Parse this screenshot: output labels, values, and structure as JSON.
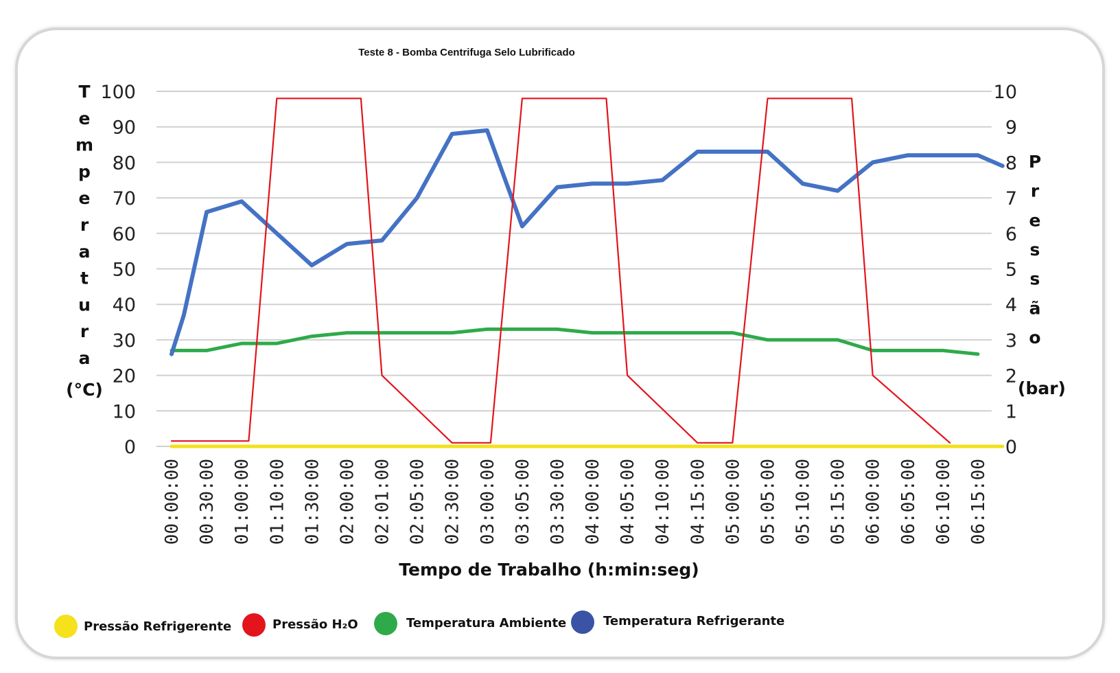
{
  "chart_data": {
    "type": "line",
    "title": "Teste 8 - Bomba Centrifuga Selo Lubrificado",
    "xlabel": "Tempo de Trabalho (h:min:seg)",
    "ylabel_left": "Temperatura",
    "ylabel_left_unit": "(°C)",
    "ylabel_right": "Pressão",
    "ylabel_right_unit": "(bar)",
    "ylim_left": [
      0,
      100
    ],
    "ylim_right": [
      0,
      10
    ],
    "yticks_left": [
      "0",
      "10",
      "20",
      "30",
      "40",
      "50",
      "60",
      "70",
      "80",
      "90",
      "100"
    ],
    "yticks_right": [
      "0",
      "1",
      "2",
      "3",
      "4",
      "5",
      "6",
      "7",
      "8",
      "9",
      "10"
    ],
    "grid": true,
    "categories": [
      "00:00:00",
      "00:30:00",
      "01:00:00",
      "01:10:00",
      "01:30:00",
      "02:00:00",
      "02:01:00",
      "02:05:00",
      "02:30:00",
      "03:00:00",
      "03:05:00",
      "03:30:00",
      "04:00:00",
      "04:05:00",
      "04:10:00",
      "04:15:00",
      "05:00:00",
      "05:05:00",
      "05:10:00",
      "05:15:00",
      "06:00:00",
      "06:05:00",
      "06:10:00",
      "06:15:00"
    ],
    "series": [
      {
        "name": "Temperatura Refrigerante",
        "axis": "left",
        "color": "#4472c4",
        "x": [
          0,
          0.35,
          1,
          2,
          3,
          4,
          5,
          6,
          7,
          8,
          9,
          10,
          11,
          12,
          13,
          14,
          15,
          16,
          17,
          18,
          19,
          20,
          21,
          22,
          23,
          23.7
        ],
        "values": [
          26,
          37,
          66,
          69,
          60,
          51,
          57,
          58,
          70,
          88,
          89,
          62,
          73,
          74,
          74,
          75,
          83,
          83,
          83,
          74,
          72,
          80,
          82,
          82,
          82,
          79
        ]
      },
      {
        "name": "Temperatura Ambiente",
        "axis": "left",
        "color": "#2eaa4a",
        "x": [
          0,
          1,
          2,
          3,
          4,
          5,
          6,
          7,
          8,
          9,
          10,
          11,
          12,
          13,
          14,
          15,
          16,
          17,
          18,
          19,
          20,
          21,
          22,
          23
        ],
        "values": [
          27,
          27,
          29,
          29,
          31,
          32,
          32,
          32,
          32,
          33,
          33,
          33,
          32,
          32,
          32,
          32,
          32,
          30,
          30,
          30,
          27,
          27,
          27,
          26
        ]
      },
      {
        "name": "Pressão H₂O",
        "axis": "right",
        "color": "#e3141b",
        "x": [
          0,
          2.2,
          3,
          5.4,
          6,
          8,
          9.1,
          10,
          12.4,
          13,
          15,
          16,
          17,
          19.4,
          20,
          22.2
        ],
        "values": [
          0.15,
          0.15,
          9.8,
          9.8,
          2.0,
          0.1,
          0.1,
          9.8,
          9.8,
          2.0,
          0.1,
          0.1,
          9.8,
          9.8,
          2.0,
          0.1
        ]
      },
      {
        "name": "Pressão Refrigerente",
        "axis": "right",
        "color": "#f2e01b",
        "x": [
          0,
          23.7
        ],
        "values": [
          0,
          0
        ]
      }
    ],
    "legend": {
      "position": "bottom-left",
      "items": [
        {
          "label": "Pressão Refrigerente",
          "color": "#f5e11c"
        },
        {
          "label": "Pressão H₂O",
          "color": "#e3141b"
        },
        {
          "label": "Temperatura Ambiente",
          "color": "#2eaa4a"
        },
        {
          "label": "Temperatura Refrigerante",
          "color": "#3a53a4"
        }
      ]
    }
  }
}
